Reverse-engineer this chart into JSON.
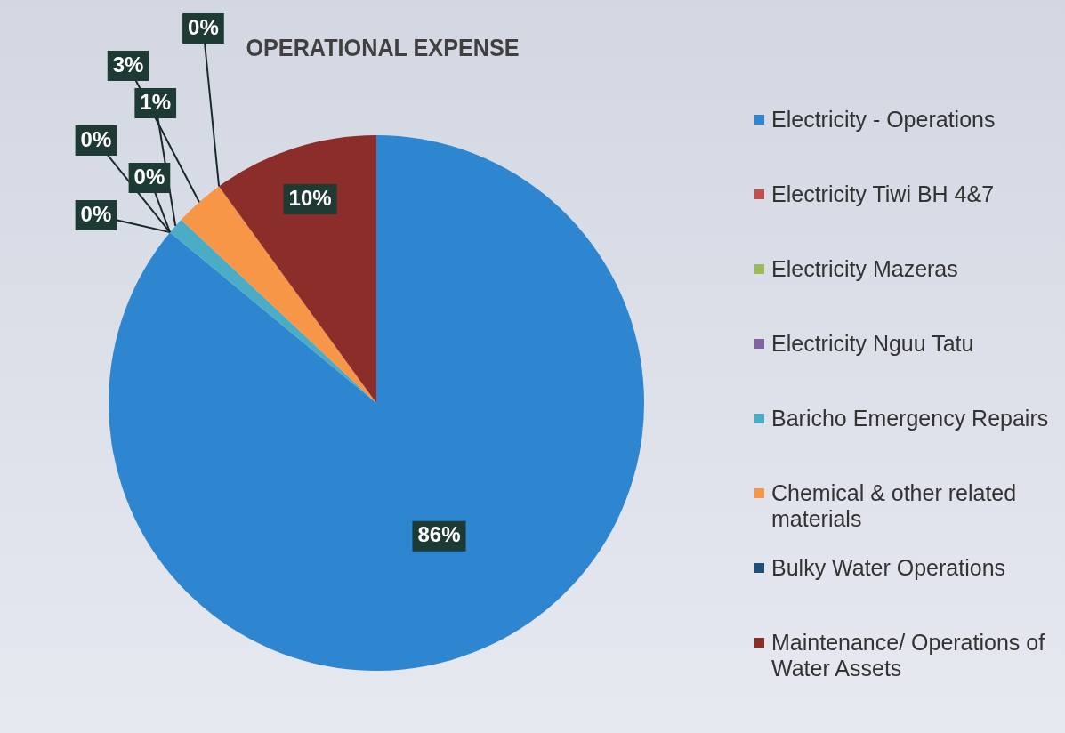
{
  "chart_data": {
    "type": "pie",
    "title": "OPERATIONAL EXPENSE",
    "categories": [
      "Electricity - Operations",
      "Electricity Tiwi BH 4&7",
      "Electricity Mazeras",
      "Electricity Nguu Tatu",
      "Baricho Emergency Repairs",
      "Chemical & other related materials",
      "Bulky Water Operations",
      "Maintenance/ Operations of Water Assets"
    ],
    "values": [
      86,
      0,
      0,
      0,
      1,
      3,
      0,
      10
    ],
    "colors": [
      "#2e86d0",
      "#c0504d",
      "#9bbb59",
      "#8064a2",
      "#4bacc6",
      "#f79646",
      "#1f4e79",
      "#8b2e2a"
    ],
    "value_labels": [
      "86%",
      "0%",
      "0%",
      "0%",
      "1%",
      "3%",
      "0%",
      "10%"
    ],
    "legend": "right"
  }
}
